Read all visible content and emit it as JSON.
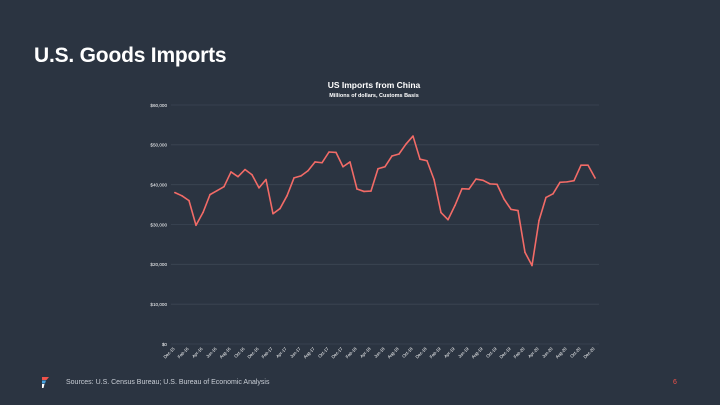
{
  "slide": {
    "title": "U.S. Goods Imports",
    "source": "Sources: U.S. Census Bureau; U.S. Bureau of Economic Analysis",
    "page_number": "6"
  },
  "colors": {
    "background": "#2b3441",
    "line": "#f26b67",
    "grid": "#3d4654",
    "accent": "#f0524a"
  },
  "chart_data": {
    "type": "line",
    "title": "US Imports from China",
    "subtitle": "Millions of dollars, Customs Basis",
    "xlabel": "",
    "ylabel": "",
    "ylim": [
      0,
      60000
    ],
    "y_ticks": [
      0,
      10000,
      20000,
      30000,
      40000,
      50000,
      60000
    ],
    "y_tick_labels": [
      "$0",
      "$10,000",
      "$20,000",
      "$30,000",
      "$40,000",
      "$50,000",
      "$60,000"
    ],
    "grid": true,
    "x_tick_labels": [
      "Dec-15",
      "Feb-16",
      "Apr-16",
      "Jun-16",
      "Aug-16",
      "Oct-16",
      "Dec-16",
      "Feb-17",
      "Apr-17",
      "Jun-17",
      "Aug-17",
      "Oct-17",
      "Dec-17",
      "Feb-18",
      "Apr-18",
      "Jun-18",
      "Aug-18",
      "Oct-18",
      "Dec-18",
      "Feb-19",
      "Apr-19",
      "Jun-19",
      "Aug-19",
      "Oct-19",
      "Dec-19",
      "Feb-20",
      "Apr-20",
      "Jun-20",
      "Aug-20",
      "Oct-20",
      "Dec-20"
    ],
    "series": [
      {
        "name": "US Imports from China",
        "values": [
          38000,
          37200,
          36000,
          29800,
          33000,
          37500,
          38500,
          39500,
          43200,
          42000,
          43800,
          42500,
          39200,
          41300,
          32700,
          34000,
          37200,
          41700,
          42200,
          43500,
          45700,
          45500,
          48200,
          48100,
          44500,
          45700,
          38900,
          38300,
          38400,
          44000,
          44500,
          47200,
          47700,
          50200,
          52200,
          46400,
          46000,
          41300,
          33000,
          31200,
          34800,
          39000,
          38900,
          41400,
          41100,
          40200,
          40100,
          36400,
          33800,
          33500,
          23000,
          19700,
          31000,
          36800,
          37700,
          40600,
          40700,
          41000,
          44900,
          44900,
          41700
        ]
      }
    ]
  }
}
